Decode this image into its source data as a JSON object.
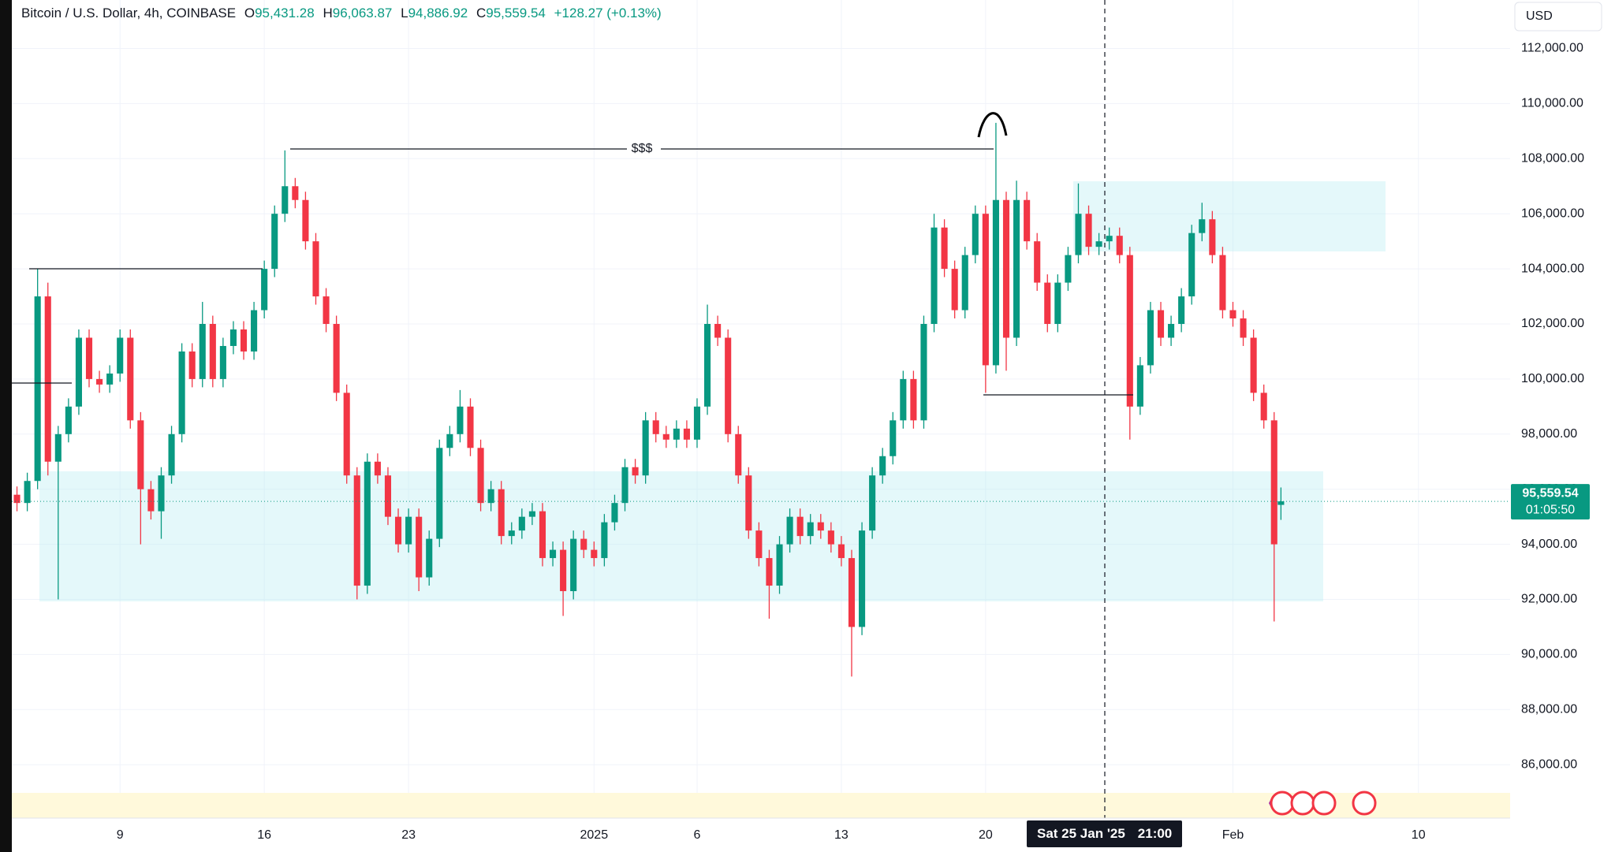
{
  "chart_data": {
    "type": "candlestick",
    "header": {
      "symbol": "Bitcoin / U.S. Dollar, 4h, COINBASE",
      "o_key": "O",
      "o": "95,431.28",
      "h_key": "H",
      "h": "96,063.87",
      "l_key": "L",
      "l": "94,886.92",
      "c_key": "C",
      "c": "95,559.54",
      "change": "+128.27 (+0.13%)"
    },
    "currency": "USD",
    "annotation": "$$$",
    "last_price_label": "95,559.54",
    "countdown": "01:05:50",
    "crosshair": {
      "date": "Sat 25 Jan '25",
      "time": "21:00"
    },
    "up_color": "#089981",
    "down_color": "#f23645",
    "grid": true,
    "xlim": [
      2.75,
      75.45
    ],
    "xticks": [
      {
        "value": 8,
        "label": "9"
      },
      {
        "value": 15,
        "label": "16"
      },
      {
        "value": 22,
        "label": "23"
      },
      {
        "value": 31,
        "label": "2025"
      },
      {
        "value": 36,
        "label": "6"
      },
      {
        "value": 43,
        "label": "13"
      },
      {
        "value": 50,
        "label": "20"
      },
      {
        "value": 62,
        "label": "Feb"
      },
      {
        "value": 71,
        "label": "10"
      }
    ],
    "ylim": [
      84060,
      113760
    ],
    "yticks": [
      {
        "value": 86000,
        "label": "86,000.00"
      },
      {
        "value": 88000,
        "label": "88,000.00"
      },
      {
        "value": 90000,
        "label": "90,000.00"
      },
      {
        "value": 92000,
        "label": "92,000.00"
      },
      {
        "value": 94000,
        "label": "94,000.00"
      },
      {
        "value": 96000,
        "label": "96,000.00"
      },
      {
        "value": 98000,
        "label": "98,000.00"
      },
      {
        "value": 100000,
        "label": "100,000.00"
      },
      {
        "value": 102000,
        "label": "102,000.00"
      },
      {
        "value": 104000,
        "label": "104,000.00"
      },
      {
        "value": 106000,
        "label": "106,000.00"
      },
      {
        "value": 108000,
        "label": "108,000.00"
      },
      {
        "value": 110000,
        "label": "110,000.00"
      },
      {
        "value": 112000,
        "label": "112,000.00"
      }
    ],
    "x": [
      3,
      3.5,
      4,
      4.5,
      5,
      5.5,
      6,
      6.5,
      7,
      7.5,
      8,
      8.5,
      9,
      9.5,
      10,
      10.5,
      11,
      11.5,
      12,
      12.5,
      13,
      13.5,
      14,
      14.5,
      15,
      15.5,
      16,
      16.5,
      17,
      17.5,
      18,
      18.5,
      19,
      19.5,
      20,
      20.5,
      21,
      21.5,
      22,
      22.5,
      23,
      23.5,
      24,
      24.5,
      25,
      25.5,
      26,
      26.5,
      27,
      27.5,
      28,
      28.5,
      29,
      29.5,
      30,
      30.5,
      31,
      31.5,
      32,
      32.5,
      33,
      33.5,
      34,
      34.5,
      35,
      35.5,
      36,
      36.5,
      37,
      37.5,
      38,
      38.5,
      39,
      39.5,
      40,
      40.5,
      41,
      41.5,
      42,
      42.5,
      43,
      43.5,
      44,
      44.5,
      45,
      45.5,
      46,
      46.5,
      47,
      47.5,
      48,
      48.5,
      49,
      49.5,
      50,
      50.5,
      51,
      51.5,
      52,
      52.5,
      53,
      53.5,
      54,
      54.5,
      55,
      55.5,
      56,
      56.5,
      57,
      57.5,
      58,
      58.5,
      59,
      59.5,
      60,
      60.5,
      61,
      61.5,
      62,
      62.5,
      63,
      63.5,
      64,
      64.33
    ],
    "open": [
      95800,
      95500,
      96300,
      103000,
      97000,
      98000,
      99000,
      101500,
      100000,
      99800,
      100200,
      101500,
      98500,
      96000,
      95200,
      96500,
      98000,
      101000,
      100000,
      102000,
      100000,
      101200,
      101800,
      101000,
      102500,
      104000,
      106000,
      107000,
      106500,
      105000,
      103000,
      102000,
      99500,
      96500,
      92500,
      97000,
      96500,
      95000,
      94000,
      95000,
      92800,
      94200,
      97500,
      98000,
      99000,
      97500,
      95500,
      96000,
      94300,
      94500,
      95000,
      95200,
      93500,
      93800,
      92300,
      94200,
      93800,
      93500,
      94800,
      95500,
      96800,
      96500,
      98500,
      98000,
      97800,
      98200,
      97800,
      99000,
      102000,
      101500,
      98000,
      96500,
      94500,
      93500,
      92500,
      94000,
      95000,
      94300,
      94800,
      94500,
      94000,
      93500,
      91000,
      94500,
      96500,
      97200,
      98500,
      100000,
      98500,
      102000,
      105500,
      104000,
      102500,
      104500,
      106000,
      100500,
      106500,
      101500,
      106500,
      105000,
      103500,
      102000,
      103500,
      104500,
      106000,
      104800,
      105000,
      105200,
      104500,
      99000,
      100500,
      102500,
      101500,
      102000,
      103000,
      105300,
      105800,
      104500,
      102500,
      102200,
      101500,
      99500,
      98500,
      95431.28
    ],
    "high": [
      96100,
      96600,
      104000,
      103500,
      98300,
      99300,
      101800,
      101800,
      100300,
      100500,
      101800,
      101800,
      98800,
      96300,
      96800,
      98300,
      101300,
      101300,
      102800,
      102300,
      101500,
      102100,
      102100,
      102800,
      104300,
      106300,
      108300,
      107300,
      106800,
      105300,
      103300,
      102300,
      99800,
      96800,
      97300,
      97300,
      96800,
      95300,
      95300,
      95300,
      94500,
      97800,
      98300,
      99600,
      99300,
      97800,
      96300,
      96300,
      94800,
      95300,
      95500,
      95500,
      94100,
      94100,
      94500,
      94500,
      94100,
      95100,
      95800,
      97100,
      97100,
      98800,
      98800,
      98300,
      98500,
      98500,
      99300,
      102700,
      102300,
      101800,
      98300,
      96800,
      94800,
      93800,
      94300,
      95300,
      95300,
      95100,
      95100,
      94800,
      94300,
      93800,
      94800,
      96800,
      97500,
      98800,
      100300,
      100300,
      102300,
      106000,
      105800,
      104300,
      104800,
      106300,
      106300,
      109300,
      106800,
      107200,
      106800,
      105300,
      103800,
      103800,
      104800,
      107100,
      106300,
      105300,
      105500,
      105500,
      104800,
      100800,
      102800,
      102800,
      102300,
      103300,
      105600,
      106400,
      106100,
      104800,
      102800,
      102500,
      101800,
      99800,
      98800,
      96063.87
    ],
    "low": [
      95200,
      95200,
      96000,
      96500,
      92000,
      97700,
      98700,
      99700,
      99500,
      99500,
      99900,
      98200,
      94000,
      94900,
      94200,
      96200,
      97700,
      99700,
      99700,
      99700,
      99700,
      100900,
      100700,
      100700,
      102200,
      103700,
      105700,
      106200,
      104700,
      102700,
      101700,
      99200,
      96200,
      92000,
      92200,
      96200,
      94700,
      93700,
      93700,
      92300,
      92500,
      93900,
      97200,
      97700,
      97200,
      95200,
      95200,
      94000,
      94000,
      94200,
      94700,
      93200,
      93200,
      91400,
      92000,
      93500,
      93200,
      93200,
      94500,
      95200,
      96200,
      96200,
      97700,
      97500,
      97500,
      97500,
      97500,
      98700,
      101200,
      97700,
      96200,
      94200,
      93200,
      91300,
      92200,
      93700,
      94000,
      94000,
      94200,
      93700,
      93200,
      89200,
      90700,
      94200,
      96200,
      96900,
      98200,
      98200,
      98200,
      101700,
      103700,
      102200,
      102200,
      104200,
      99500,
      100200,
      100300,
      101200,
      104700,
      103200,
      101700,
      101700,
      103200,
      104200,
      104500,
      104500,
      104700,
      104200,
      97800,
      98700,
      100200,
      101200,
      101200,
      101700,
      102700,
      105000,
      104200,
      102200,
      101900,
      101200,
      99200,
      98200,
      91200,
      94886.92
    ],
    "close": [
      95500,
      96300,
      103000,
      97000,
      98000,
      99000,
      101500,
      100000,
      99800,
      100200,
      101500,
      98500,
      96000,
      95200,
      96500,
      98000,
      101000,
      100000,
      102000,
      100000,
      101200,
      101800,
      101000,
      102500,
      104000,
      106000,
      107000,
      106500,
      105000,
      103000,
      102000,
      99500,
      96500,
      92500,
      97000,
      96500,
      95000,
      94000,
      95000,
      92800,
      94200,
      97500,
      98000,
      99000,
      97500,
      95500,
      96000,
      94300,
      94500,
      95000,
      95200,
      93500,
      93800,
      92300,
      94200,
      93800,
      93500,
      94800,
      95500,
      96800,
      96500,
      98500,
      98000,
      97800,
      98200,
      97800,
      99000,
      102000,
      101500,
      98000,
      96500,
      94500,
      93500,
      92500,
      94000,
      95000,
      94300,
      94800,
      94500,
      94000,
      93500,
      91000,
      94500,
      96500,
      97200,
      98500,
      100000,
      98500,
      102000,
      105500,
      104000,
      102500,
      104500,
      106000,
      100500,
      106500,
      101500,
      106500,
      105000,
      103500,
      102000,
      103500,
      104500,
      106000,
      104800,
      105000,
      105200,
      104500,
      99000,
      100500,
      102500,
      101500,
      102000,
      103000,
      105300,
      105800,
      104500,
      102500,
      102200,
      101500,
      99500,
      98500,
      94000,
      95559.54
    ]
  }
}
